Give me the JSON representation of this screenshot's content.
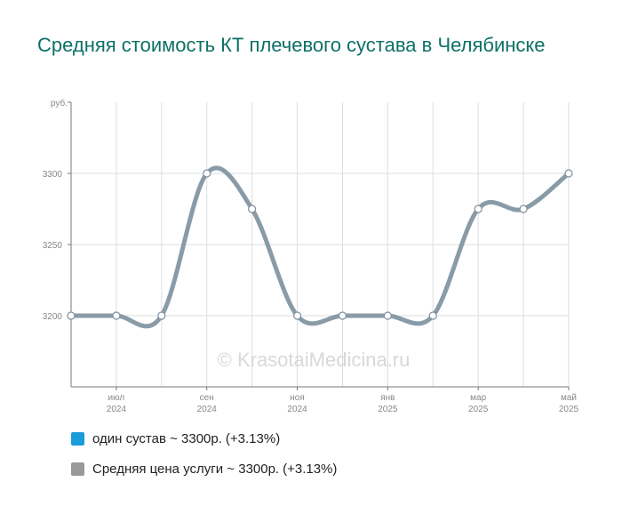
{
  "title": "Средняя стоимость КТ плечевого сустава в Челябинске",
  "watermark": "© KrasotaiMedicina.ru",
  "chart_data": {
    "type": "line",
    "ylabel": "руб.",
    "ylim": [
      3150,
      3350
    ],
    "yticks": [
      3200,
      3250,
      3300
    ],
    "x": [
      "2024-06",
      "2024-07",
      "2024-08",
      "2024-09",
      "2024-10",
      "2024-11",
      "2024-12",
      "2025-01",
      "2025-02",
      "2025-03",
      "2025-04",
      "2025-05"
    ],
    "xtick_labels": [
      {
        "month": "июл",
        "year": "2024"
      },
      {
        "month": "сен",
        "year": "2024"
      },
      {
        "month": "ноя",
        "year": "2024"
      },
      {
        "month": "янв",
        "year": "2025"
      },
      {
        "month": "мар",
        "year": "2025"
      },
      {
        "month": "май",
        "year": "2025"
      }
    ],
    "series": [
      {
        "name": "Средняя цена услуги",
        "color": "#8a9ba8",
        "values": [
          3200,
          3200,
          3200,
          3300,
          3275,
          3200,
          3200,
          3200,
          3200,
          3275,
          3275,
          3300
        ]
      }
    ],
    "grid": true
  },
  "legend": [
    {
      "label": "один сустав ~ 3300р.",
      "change": "(+3.13%)",
      "color": "#1a9bdc"
    },
    {
      "label": "Средняя цена услуги ~ 3300р.",
      "change": "(+3.13%)",
      "color": "#999999"
    }
  ]
}
